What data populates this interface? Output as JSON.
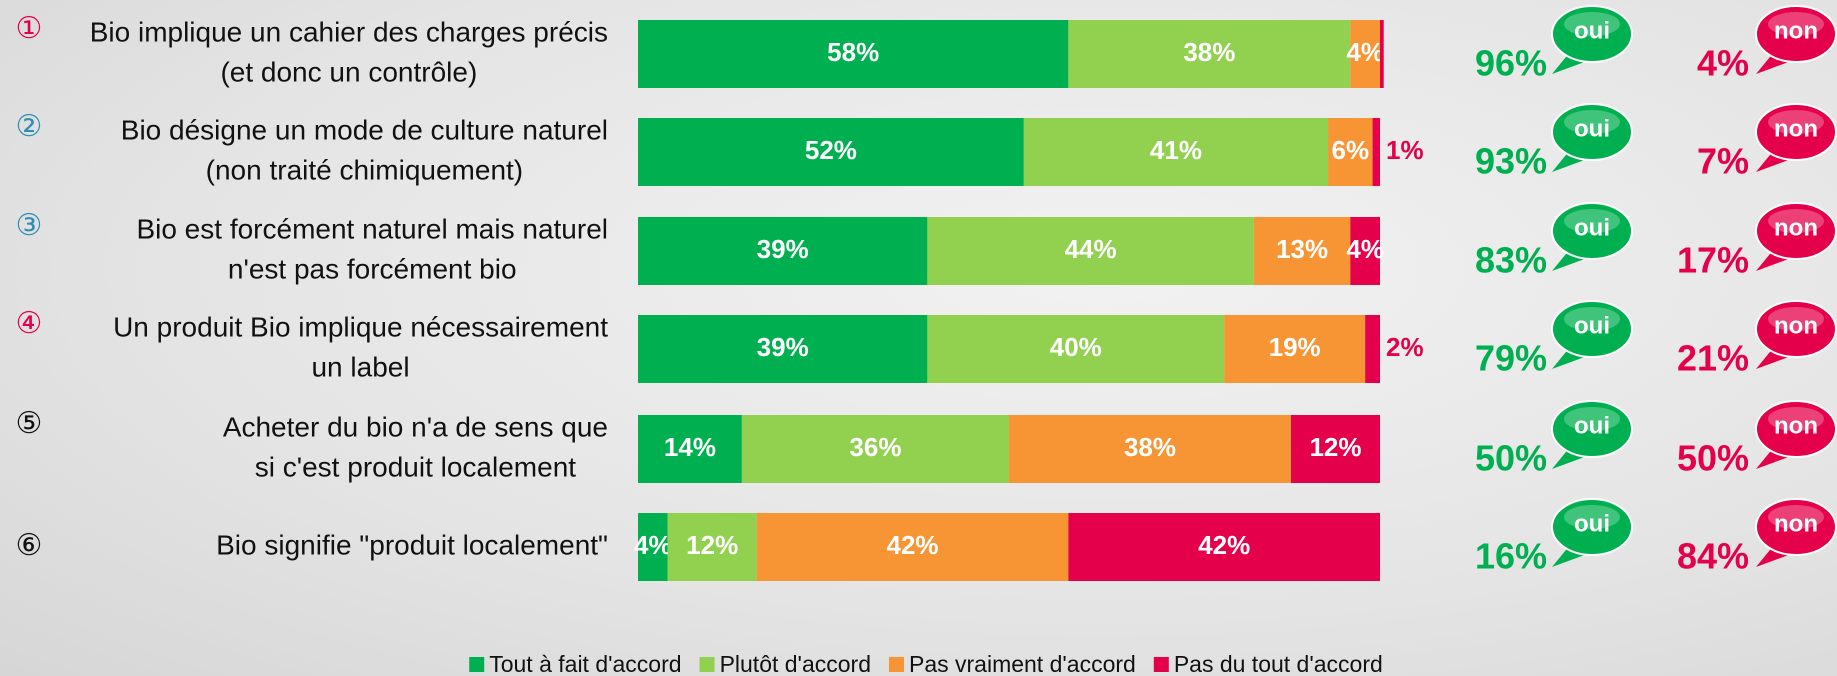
{
  "chart_data": {
    "type": "stacked-bar-horizontal",
    "row_numbers": [
      "①",
      "②",
      "③",
      "④",
      "⑤",
      "⑥"
    ],
    "row_number_colors": [
      "#e5004b",
      "#2e8fb5",
      "#2e8fb5",
      "#e5004b",
      "#111111",
      "#111111"
    ],
    "categories": [
      [
        "Bio implique un cahier des charges précis",
        "(et donc un contrôle)"
      ],
      [
        "Bio désigne un mode de culture naturel",
        "(non traité chimiquement)"
      ],
      [
        "Bio est forcément naturel mais naturel",
        "n'est pas forcément bio"
      ],
      [
        "Un produit Bio implique nécessairement",
        "un label"
      ],
      [
        "Acheter du bio n'a de sens que",
        "si c'est produit localement"
      ],
      [
        "Bio signifie \"produit localement\""
      ]
    ],
    "xlim": [
      0,
      100
    ],
    "series": [
      {
        "name": "Tout à fait d'accord",
        "color": "#00b050",
        "values": [
          58,
          52,
          39,
          39,
          14,
          4
        ],
        "value_labels": [
          "58%",
          "52%",
          "39%",
          "39%",
          "14%",
          "4%"
        ]
      },
      {
        "name": "Plutôt d'accord",
        "color": "#92d050",
        "values": [
          38,
          41,
          44,
          40,
          36,
          12
        ],
        "value_labels": [
          "38%",
          "41%",
          "44%",
          "40%",
          "36%",
          "12%"
        ]
      },
      {
        "name": "Pas vraiment d'accord",
        "color": "#f79433",
        "values": [
          4,
          6,
          13,
          19,
          38,
          42
        ],
        "value_labels": [
          "4%",
          "6%",
          "13%",
          "19%",
          "38%",
          "42%"
        ]
      },
      {
        "name": "Pas du tout d'accord",
        "color": "#e5004b",
        "values": [
          0.5,
          1,
          4,
          2,
          12,
          42
        ],
        "value_labels": [
          null,
          "1%",
          "4%",
          "2%",
          "12%",
          "42%"
        ]
      }
    ],
    "yes_label": "oui",
    "yes_color": "#00b050",
    "yes_values": [
      96,
      93,
      83,
      79,
      50,
      16
    ],
    "yes_value_labels": [
      "96%",
      "93%",
      "83%",
      "79%",
      "50%",
      "16%"
    ],
    "no_label": "non",
    "no_color": "#e5004b",
    "no_values": [
      4,
      7,
      17,
      21,
      50,
      84
    ],
    "no_value_labels": [
      "4%",
      "7%",
      "17%",
      "21%",
      "50%",
      "84%"
    ],
    "legend": "bottom"
  }
}
